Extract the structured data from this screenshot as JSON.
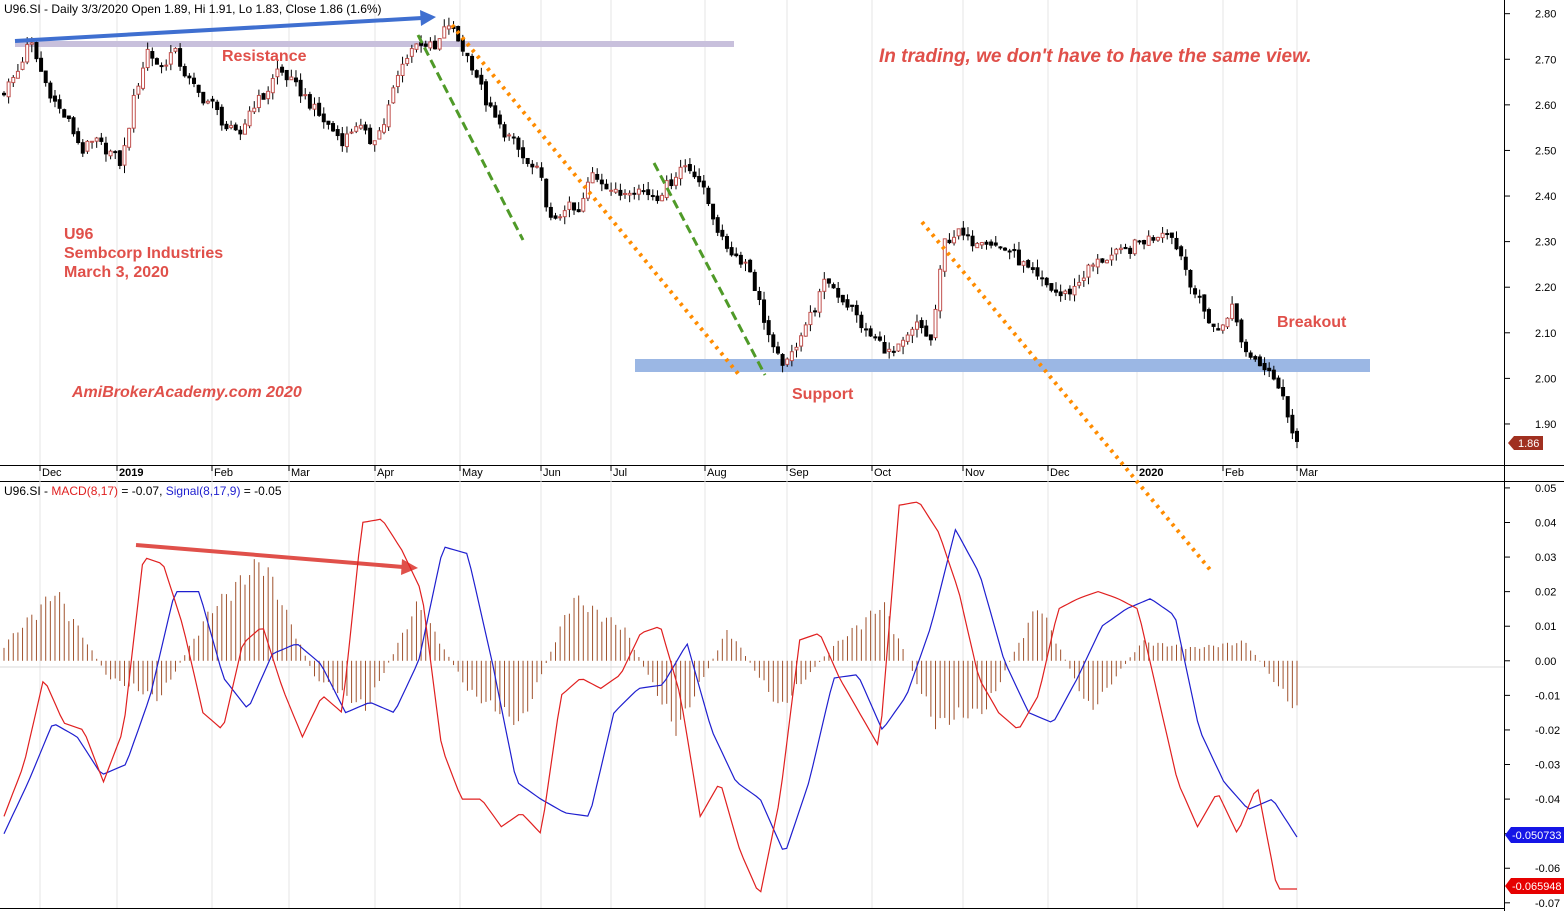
{
  "header": {
    "price_panel": {
      "symbol": "U96.SI",
      "title": "U96.SI - Daily 3/3/2020 Open 1.89, Hi 1.91, Lo 1.83, Close 1.86 (1.6%)"
    },
    "macd_panel": {
      "prefix": "U96.SI - ",
      "macd_label": "MACD(8,17)",
      "macd_value": " = -0.07, ",
      "signal_label": "Signal(8,17,9)",
      "signal_value": " = -0.05"
    }
  },
  "annotations": {
    "resistance": "Resistance",
    "support": "Support",
    "breakout": "Breakout",
    "quote": "In trading, we don't have to have the same view.",
    "name_line1": "U96",
    "name_line2": "Sembcorp Industries",
    "name_line3": "March 3, 2020",
    "watermark": "AmiBrokerAcademy.com   2020"
  },
  "badges": {
    "price": "1.86",
    "signal": "-0.050733",
    "macd": "-0.065948"
  },
  "colors": {
    "up_candle": "#c0504d",
    "down_candle": "#000000",
    "macd_line": "#e02020",
    "signal_line": "#1f1fcf",
    "histogram": "#a0522d",
    "resistance_band": "#c8c0dc",
    "support_band": "#9bb7e4",
    "orange_trend": "#ff8c00",
    "green_trend": "#4f9a28",
    "blue_arrow": "#3f6fd0",
    "red_arrow": "#e0504a",
    "price_badge": "#a03020",
    "signal_badge": "#1515e6",
    "macd_badge": "#e60000"
  },
  "chart_data": [
    {
      "type": "candlestick",
      "title": "U96.SI - Daily 3/3/2020",
      "x_ticks": [
        "Dec",
        "2019",
        "Feb",
        "Mar",
        "Apr",
        "May",
        "Jun",
        "Jul",
        "Aug",
        "Sep",
        "Oct",
        "Nov",
        "Dec",
        "2020",
        "Feb",
        "Mar"
      ],
      "y_ticks": [
        "1.90",
        "2.00",
        "2.10",
        "2.20",
        "2.30",
        "2.40",
        "2.50",
        "2.60",
        "2.70",
        "2.80"
      ],
      "ylim": [
        1.81,
        2.83
      ],
      "last": {
        "date": "3/3/2020",
        "open": 1.89,
        "high": 1.91,
        "low": 1.83,
        "close": 1.86,
        "change_pct": 1.6
      },
      "path": [
        2.63,
        2.67,
        2.74,
        2.66,
        2.6,
        2.56,
        2.5,
        2.52,
        2.5,
        2.47,
        2.62,
        2.72,
        2.68,
        2.72,
        2.66,
        2.62,
        2.6,
        2.55,
        2.53,
        2.6,
        2.62,
        2.68,
        2.65,
        2.62,
        2.58,
        2.55,
        2.52,
        2.56,
        2.52,
        2.55,
        2.65,
        2.72,
        2.74,
        2.72,
        2.78,
        2.73,
        2.68,
        2.6,
        2.55,
        2.52,
        2.47,
        2.45,
        2.33,
        2.38,
        2.36,
        2.45,
        2.43,
        2.4,
        2.42,
        2.41,
        2.4,
        2.43,
        2.47,
        2.45,
        2.38,
        2.3,
        2.27,
        2.25,
        2.15,
        2.05,
        2.03,
        2.1,
        2.15,
        2.22,
        2.18,
        2.15,
        2.1,
        2.08,
        2.05,
        2.08,
        2.12,
        2.08,
        2.3,
        2.32,
        2.3,
        2.31,
        2.29,
        2.28,
        2.25,
        2.22,
        2.2,
        2.18,
        2.2,
        2.24,
        2.26,
        2.27,
        2.28,
        2.3,
        2.31,
        2.33,
        2.28,
        2.2,
        2.14,
        2.1,
        2.16,
        2.06,
        2.04,
        2.02,
        1.95,
        1.86
      ],
      "series": [
        {
          "name": "Resistance",
          "level": 2.75
        },
        {
          "name": "Support",
          "level": 2.03
        }
      ]
    },
    {
      "type": "line",
      "title": "MACD(8,17) / Signal(8,17,9)",
      "y_ticks": [
        "0.05",
        "0.04",
        "0.03",
        "0.02",
        "0.01",
        "0.00",
        "-0.01",
        "-0.02",
        "-0.03",
        "-0.04",
        "-0.05",
        "-0.06",
        "-0.07"
      ],
      "ylim": [
        -0.0715,
        0.052
      ],
      "series": [
        {
          "name": "MACD(8,17)",
          "values": [
            -0.045,
            -0.03,
            -0.005,
            -0.018,
            -0.02,
            -0.035,
            -0.02,
            0.03,
            0.028,
            0.01,
            -0.015,
            -0.02,
            0.005,
            0.01,
            -0.008,
            -0.022,
            -0.01,
            -0.015,
            0.04,
            0.041,
            0.032,
            0.02,
            -0.025,
            -0.04,
            -0.04,
            -0.048,
            -0.044,
            -0.05,
            -0.01,
            -0.005,
            -0.008,
            -0.004,
            0.008,
            0.01,
            -0.01,
            -0.045,
            -0.035,
            -0.055,
            -0.068,
            -0.04,
            0.006,
            0.008,
            -0.005,
            -0.015,
            -0.025,
            0.045,
            0.046,
            0.037,
            0.02,
            -0.005,
            -0.015,
            -0.02,
            -0.01,
            0.015,
            0.018,
            0.02,
            0.018,
            0.015,
            -0.01,
            -0.035,
            -0.048,
            -0.038,
            -0.05,
            -0.036,
            -0.066,
            -0.066
          ]
        },
        {
          "name": "Signal(8,17,9)",
          "values": [
            -0.05,
            -0.035,
            -0.018,
            -0.022,
            -0.033,
            -0.03,
            -0.01,
            0.02,
            0.02,
            -0.005,
            -0.014,
            0.002,
            0.005,
            -0.001,
            -0.015,
            -0.012,
            -0.015,
            0.0,
            0.033,
            0.031,
            0.0,
            -0.035,
            -0.04,
            -0.044,
            -0.045,
            -0.015,
            -0.008,
            -0.007,
            0.005,
            -0.02,
            -0.035,
            -0.04,
            -0.056,
            -0.035,
            -0.005,
            -0.004,
            -0.02,
            -0.01,
            0.01,
            0.038,
            0.025,
            0.0,
            -0.015,
            -0.018,
            -0.005,
            0.01,
            0.015,
            0.018,
            0.013,
            -0.02,
            -0.035,
            -0.043,
            -0.04,
            -0.051
          ]
        },
        {
          "name": "Histogram",
          "values": [
            0.005,
            0.022,
            -0.005,
            -0.012,
            0.016,
            0.032,
            -0.005,
            -0.015,
            0.018,
            -0.01,
            -0.02,
            0.02,
            0.01,
            -0.022,
            0.01,
            -0.015,
            0.004,
            0.018,
            -0.02,
            -0.015,
            0.018,
            -0.016,
            0.006,
            0.004,
            0.006,
            -0.016
          ]
        }
      ]
    }
  ]
}
